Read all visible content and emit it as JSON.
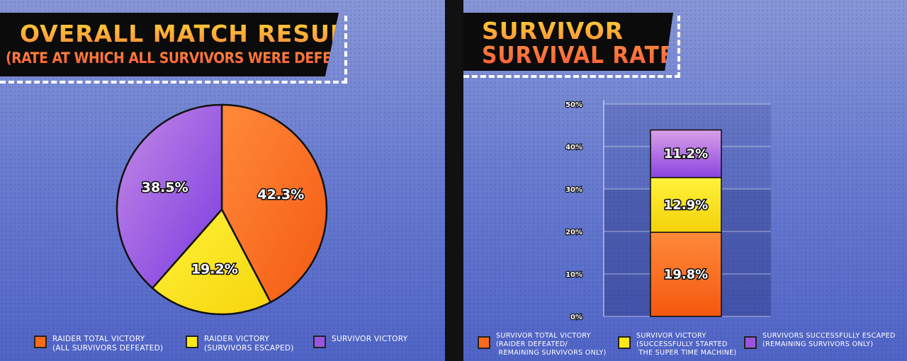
{
  "left_panel": {
    "title": "OVERALL MATCH RESULTS",
    "subtitle": "(RATE AT WHICH ALL SURVIVORS WERE DEFEATED)"
  },
  "right_panel": {
    "title_line1": "SURVIVOR",
    "title_line2": "SURVIVAL RATE"
  },
  "chart_data": [
    {
      "type": "pie",
      "title": "OVERALL MATCH RESULTS",
      "subtitle": "(RATE AT WHICH ALL SURVIVORS WERE DEFEATED)",
      "slices": [
        {
          "label": "42.3%",
          "value": 42.3,
          "color": "#ff6a1a",
          "legend": "RAIDER TOTAL VICTORY\n(ALL SURVIVORS DEFEATED)"
        },
        {
          "label": "19.2%",
          "value": 19.2,
          "color": "#ffe81a",
          "legend": "RAIDER VICTORY\n(SURVIVORS ESCAPED)"
        },
        {
          "label": "38.5%",
          "value": 38.5,
          "color": "#9a55e0",
          "legend": "SURVIVOR VICTORY"
        }
      ],
      "legend_position": "bottom"
    },
    {
      "type": "bar",
      "stacked": true,
      "title": "SURVIVOR SURVIVAL RATE",
      "categories": [
        ""
      ],
      "series": [
        {
          "name": "SURVIVOR TOTAL VICTORY\n(RAIDER DEFEATED/\n REMAINING SURVIVORS ONLY)",
          "values": [
            19.8
          ],
          "label": "19.8%",
          "color": "#ff6a1a"
        },
        {
          "name": "SURVIVOR VICTORY\n(SUCCESSFULLY STARTED\n THE SUPER TIME MACHINE)",
          "values": [
            12.9
          ],
          "label": "12.9%",
          "color": "#ffe81a"
        },
        {
          "name": "SURVIVORS SUCCESSFULLY ESCAPED\n(REMAINING SURVIVORS ONLY)",
          "values": [
            11.2
          ],
          "label": "11.2%",
          "color": "#9a55e0"
        }
      ],
      "yticks": [
        "0%",
        "10%",
        "20%",
        "30%",
        "40%",
        "50%"
      ],
      "ylim": [
        0,
        50
      ],
      "grid": true,
      "legend_position": "bottom"
    }
  ]
}
